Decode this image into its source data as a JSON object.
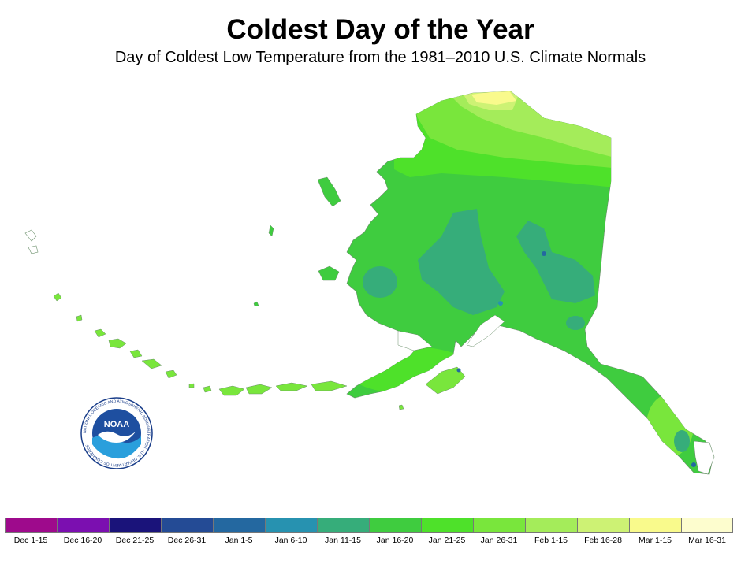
{
  "title": "Coldest Day of the Year",
  "subtitle": "Day of Coldest Low Temperature from the 1981–2010 U.S. Climate Normals",
  "logo": {
    "center_text": "NOAA",
    "ring_text": "NATIONAL OCEANIC AND ATMOSPHERIC ADMINISTRATION · U.S. DEPARTMENT OF COMMERCE"
  },
  "legend": [
    {
      "label": "Dec 1-15",
      "color": "#9e0a8c"
    },
    {
      "label": "Dec 16-20",
      "color": "#7b0fb0"
    },
    {
      "label": "Dec 21-25",
      "color": "#1a137a"
    },
    {
      "label": "Dec 26-31",
      "color": "#244b95"
    },
    {
      "label": "Jan 1-5",
      "color": "#2468a0"
    },
    {
      "label": "Jan 6-10",
      "color": "#2792b0"
    },
    {
      "label": "Jan 11-15",
      "color": "#36ad7a"
    },
    {
      "label": "Jan 16-20",
      "color": "#3fcc3f"
    },
    {
      "label": "Jan 21-25",
      "color": "#4ee12a"
    },
    {
      "label": "Jan 26-31",
      "color": "#79e63c"
    },
    {
      "label": "Feb 1-15",
      "color": "#a4ec5a"
    },
    {
      "label": "Feb 16-28",
      "color": "#cdf274"
    },
    {
      "label": "Mar 1-15",
      "color": "#f9fa8c"
    },
    {
      "label": "Mar 16-31",
      "color": "#fdfdce"
    }
  ]
}
